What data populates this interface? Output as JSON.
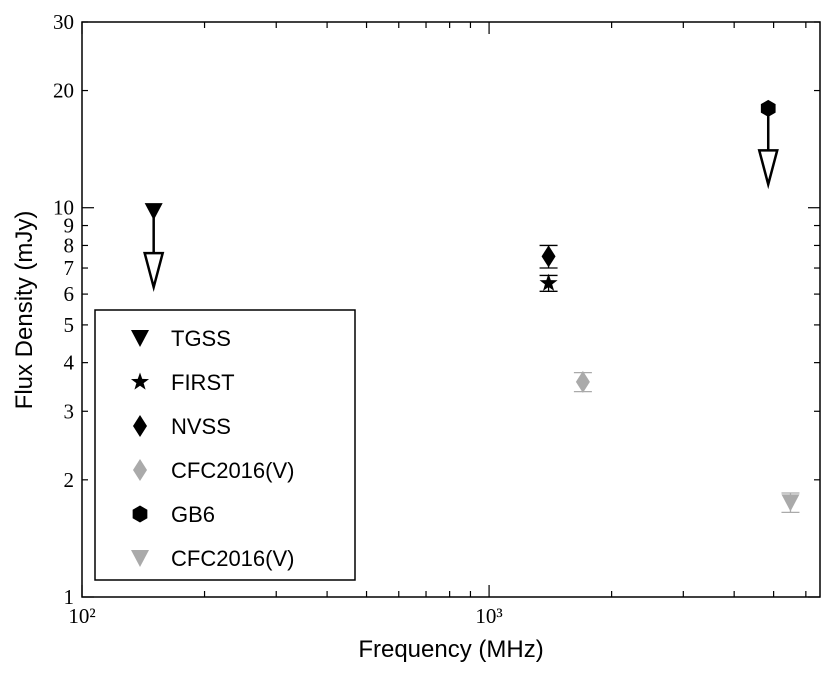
{
  "chart_data": {
    "type": "scatter",
    "xlabel": "Frequency (MHz)",
    "ylabel": "Flux Density (mJy)",
    "xscale": "log",
    "yscale": "log",
    "xlim": [
      100,
      6500
    ],
    "ylim": [
      1,
      30
    ],
    "xticks": [
      {
        "value": 100,
        "label": "10²"
      },
      {
        "value": 1000,
        "label": "10³"
      }
    ],
    "xminorticks": [
      200,
      300,
      400,
      500,
      600,
      700,
      800,
      900,
      2000,
      3000,
      4000,
      5000,
      6000
    ],
    "yticks": [
      1,
      2,
      3,
      4,
      5,
      6,
      7,
      8,
      9,
      10,
      20,
      30
    ],
    "legend": "lower left",
    "series": [
      {
        "name": "TGSS",
        "color": "#000000",
        "marker": "v",
        "x": [
          150
        ],
        "values": [
          9.8
        ],
        "upper_limit": true
      },
      {
        "name": "FIRST",
        "color": "#000000",
        "marker": "*",
        "x": [
          1400
        ],
        "values": [
          6.4
        ],
        "errors": [
          0.3
        ]
      },
      {
        "name": "NVSS",
        "color": "#000000",
        "marker": "D",
        "x": [
          1400
        ],
        "values": [
          7.5
        ],
        "errors": [
          0.5
        ]
      },
      {
        "name": "CFC2016(V)",
        "color": "#aaaaaa",
        "marker": "D",
        "x": [
          1700
        ],
        "values": [
          3.57
        ],
        "errors": [
          0.2
        ]
      },
      {
        "name": "GB6",
        "color": "#000000",
        "marker": "h",
        "x": [
          4850
        ],
        "values": [
          18
        ],
        "upper_limit": true
      },
      {
        "name": "CFC2016(V)",
        "color": "#aaaaaa",
        "marker": "v",
        "x": [
          5500
        ],
        "values": [
          1.75
        ],
        "errors": [
          0.1
        ]
      }
    ]
  }
}
